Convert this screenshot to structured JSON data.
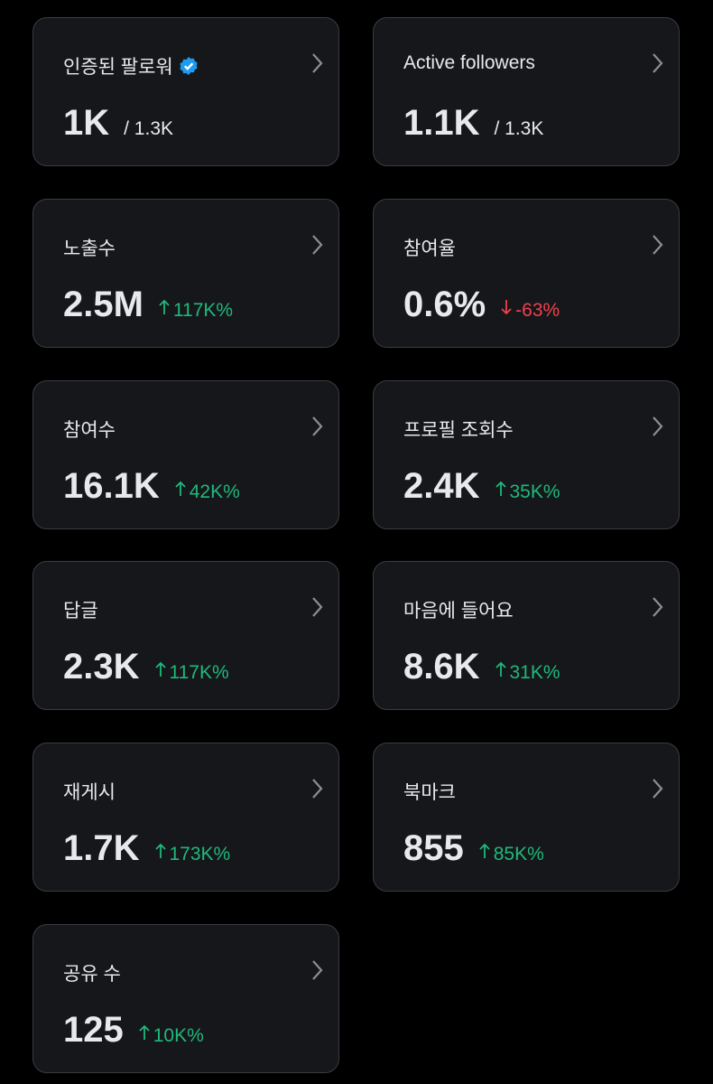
{
  "cards": [
    {
      "label": "인증된 팔로워",
      "verified": true,
      "value": "1K",
      "secondary": "/ 1.3K"
    },
    {
      "label": "Active followers",
      "value": "1.1K",
      "secondary": "/ 1.3K"
    },
    {
      "label": "노출수",
      "value": "2.5M",
      "change": "117K%",
      "trend": "up"
    },
    {
      "label": "참여율",
      "value": "0.6%",
      "change": "-63%",
      "trend": "down"
    },
    {
      "label": "참여수",
      "value": "16.1K",
      "change": "42K%",
      "trend": "up"
    },
    {
      "label": "프로필 조회수",
      "value": "2.4K",
      "change": "35K%",
      "trend": "up"
    },
    {
      "label": "답글",
      "value": "2.3K",
      "change": "117K%",
      "trend": "up"
    },
    {
      "label": "마음에 들어요",
      "value": "8.6K",
      "change": "31K%",
      "trend": "up"
    },
    {
      "label": "재게시",
      "value": "1.7K",
      "change": "173K%",
      "trend": "up"
    },
    {
      "label": "북마크",
      "value": "855",
      "change": "85K%",
      "trend": "up"
    },
    {
      "label": "공유 수",
      "value": "125",
      "change": "10K%",
      "trend": "up"
    }
  ]
}
